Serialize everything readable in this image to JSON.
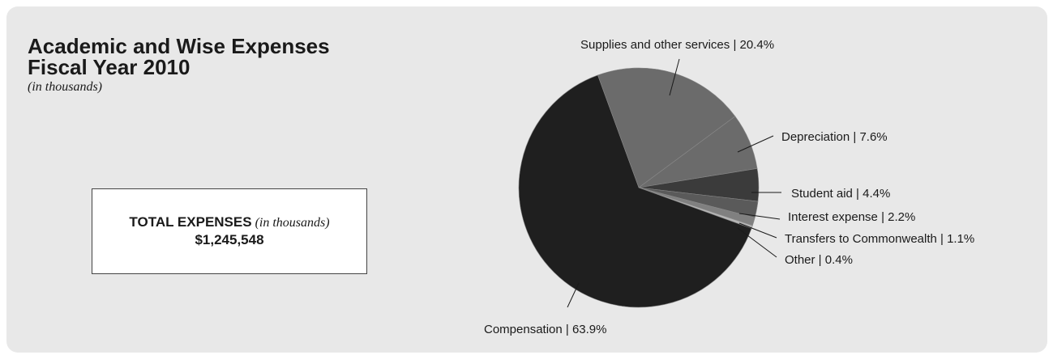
{
  "title_lines": [
    "Academic and Wise Expenses",
    "Fiscal Year 2010"
  ],
  "subtitle": "(in thousands)",
  "total": {
    "label": "TOTAL EXPENSES",
    "note": "(in thousands)",
    "value": "$1,245,548"
  },
  "colors": {
    "background": "#e8e8e8",
    "compensation": "#1f1f1f",
    "supplies": "#6b6b6b",
    "depreciation": "#6b6b6b",
    "student_aid": "#3b3b3b",
    "interest": "#5a5a5a",
    "transfers": "#808080",
    "other": "#b5b5b5"
  },
  "chart_data": {
    "type": "pie",
    "slices": [
      {
        "key": "supplies",
        "name": "Supplies and other services",
        "value": 20.4,
        "label": "Supplies and other services | 20.4%"
      },
      {
        "key": "depreciation",
        "name": "Depreciation",
        "value": 7.6,
        "label": "Depreciation | 7.6%"
      },
      {
        "key": "student_aid",
        "name": "Student aid",
        "value": 4.4,
        "label": "Student aid | 4.4%"
      },
      {
        "key": "interest",
        "name": "Interest expense",
        "value": 2.2,
        "label": "Interest expense | 2.2%"
      },
      {
        "key": "transfers",
        "name": "Transfers to Commonwealth",
        "value": 1.1,
        "label": "Transfers to Commonwealth | 1.1%"
      },
      {
        "key": "other",
        "name": "Other",
        "value": 0.4,
        "label": "Other | 0.4%"
      },
      {
        "key": "compensation",
        "name": "Compensation",
        "value": 63.9,
        "label": "Compensation | 63.9%"
      }
    ]
  }
}
